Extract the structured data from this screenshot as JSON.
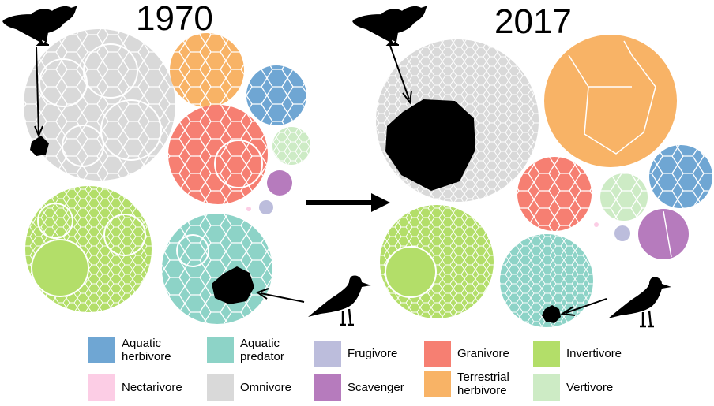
{
  "years": {
    "before": "1970",
    "after": "2017"
  },
  "guilds": [
    {
      "key": "aquatic-herbivore",
      "label": "Aquatic\nherbivore",
      "color": "#6fa6d3"
    },
    {
      "key": "aquatic-predator",
      "label": "Aquatic\npredator",
      "color": "#8dd3c7"
    },
    {
      "key": "frugivore",
      "label": "Frugivore",
      "color": "#bcbddc"
    },
    {
      "key": "granivore",
      "label": "Granivore",
      "color": "#f67f72"
    },
    {
      "key": "invertivore",
      "label": "Invertivore",
      "color": "#b3de69"
    },
    {
      "key": "nectarivore",
      "label": "Nectarivore",
      "color": "#fccde5"
    },
    {
      "key": "omnivore",
      "label": "Omnivore",
      "color": "#d9d9d9"
    },
    {
      "key": "scavenger",
      "label": "Scavenger",
      "color": "#b67bbd"
    },
    {
      "key": "terrestrial-herbivore",
      "label": "Terrestrial\nherbivore",
      "color": "#f8b366"
    },
    {
      "key": "vertivore",
      "label": "Vertivore",
      "color": "#cdebc5"
    }
  ],
  "highlight_color": "#000000",
  "icons": [
    "peacock-silhouette-icon",
    "gull-silhouette-icon",
    "arrow-icon"
  ]
}
